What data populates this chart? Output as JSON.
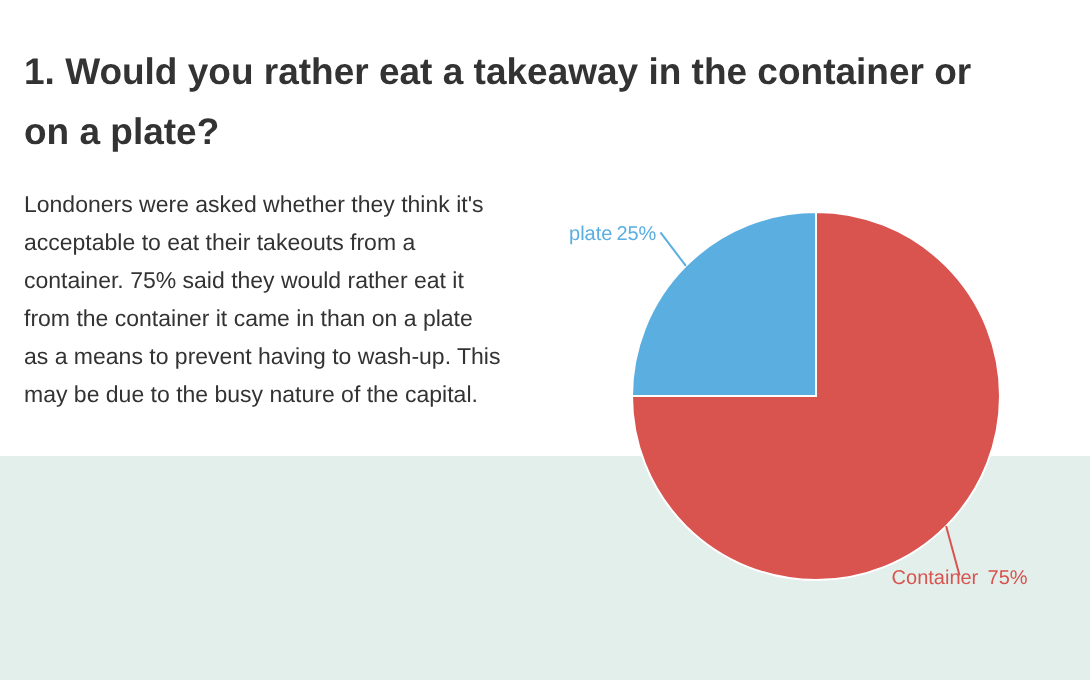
{
  "chart_data": {
    "type": "pie",
    "title": "1. Would you rather eat a takeaway in the container or on a plate?",
    "subtitle": "Londoners were asked whether they think it's acceptable to eat their takeouts from a container. 75% said they would rather eat it from the container it came in than on a plate as a means to prevent having to wash-up. This may be due to the busy nature of the capital.",
    "categories": [
      "plate",
      "Container"
    ],
    "values": [
      25,
      75
    ],
    "colors": [
      "#5aaee0",
      "#d9534f"
    ],
    "value_labels": [
      "25%",
      "75%"
    ]
  }
}
